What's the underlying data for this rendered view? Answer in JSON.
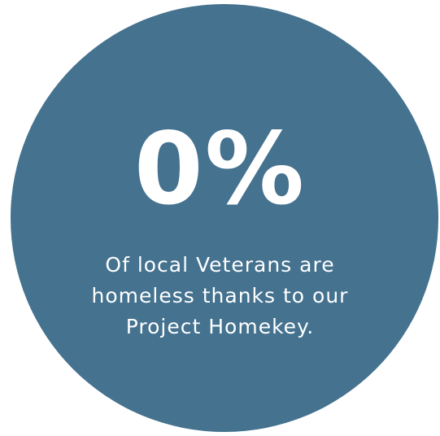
{
  "stat": {
    "value": "0%",
    "caption_lines": [
      "Of local Veterans are",
      "homeless thanks to our",
      "Project Homekey."
    ]
  },
  "colors": {
    "circle_fill": "#44728f",
    "text": "#ffffff",
    "background": "#ffffff"
  }
}
